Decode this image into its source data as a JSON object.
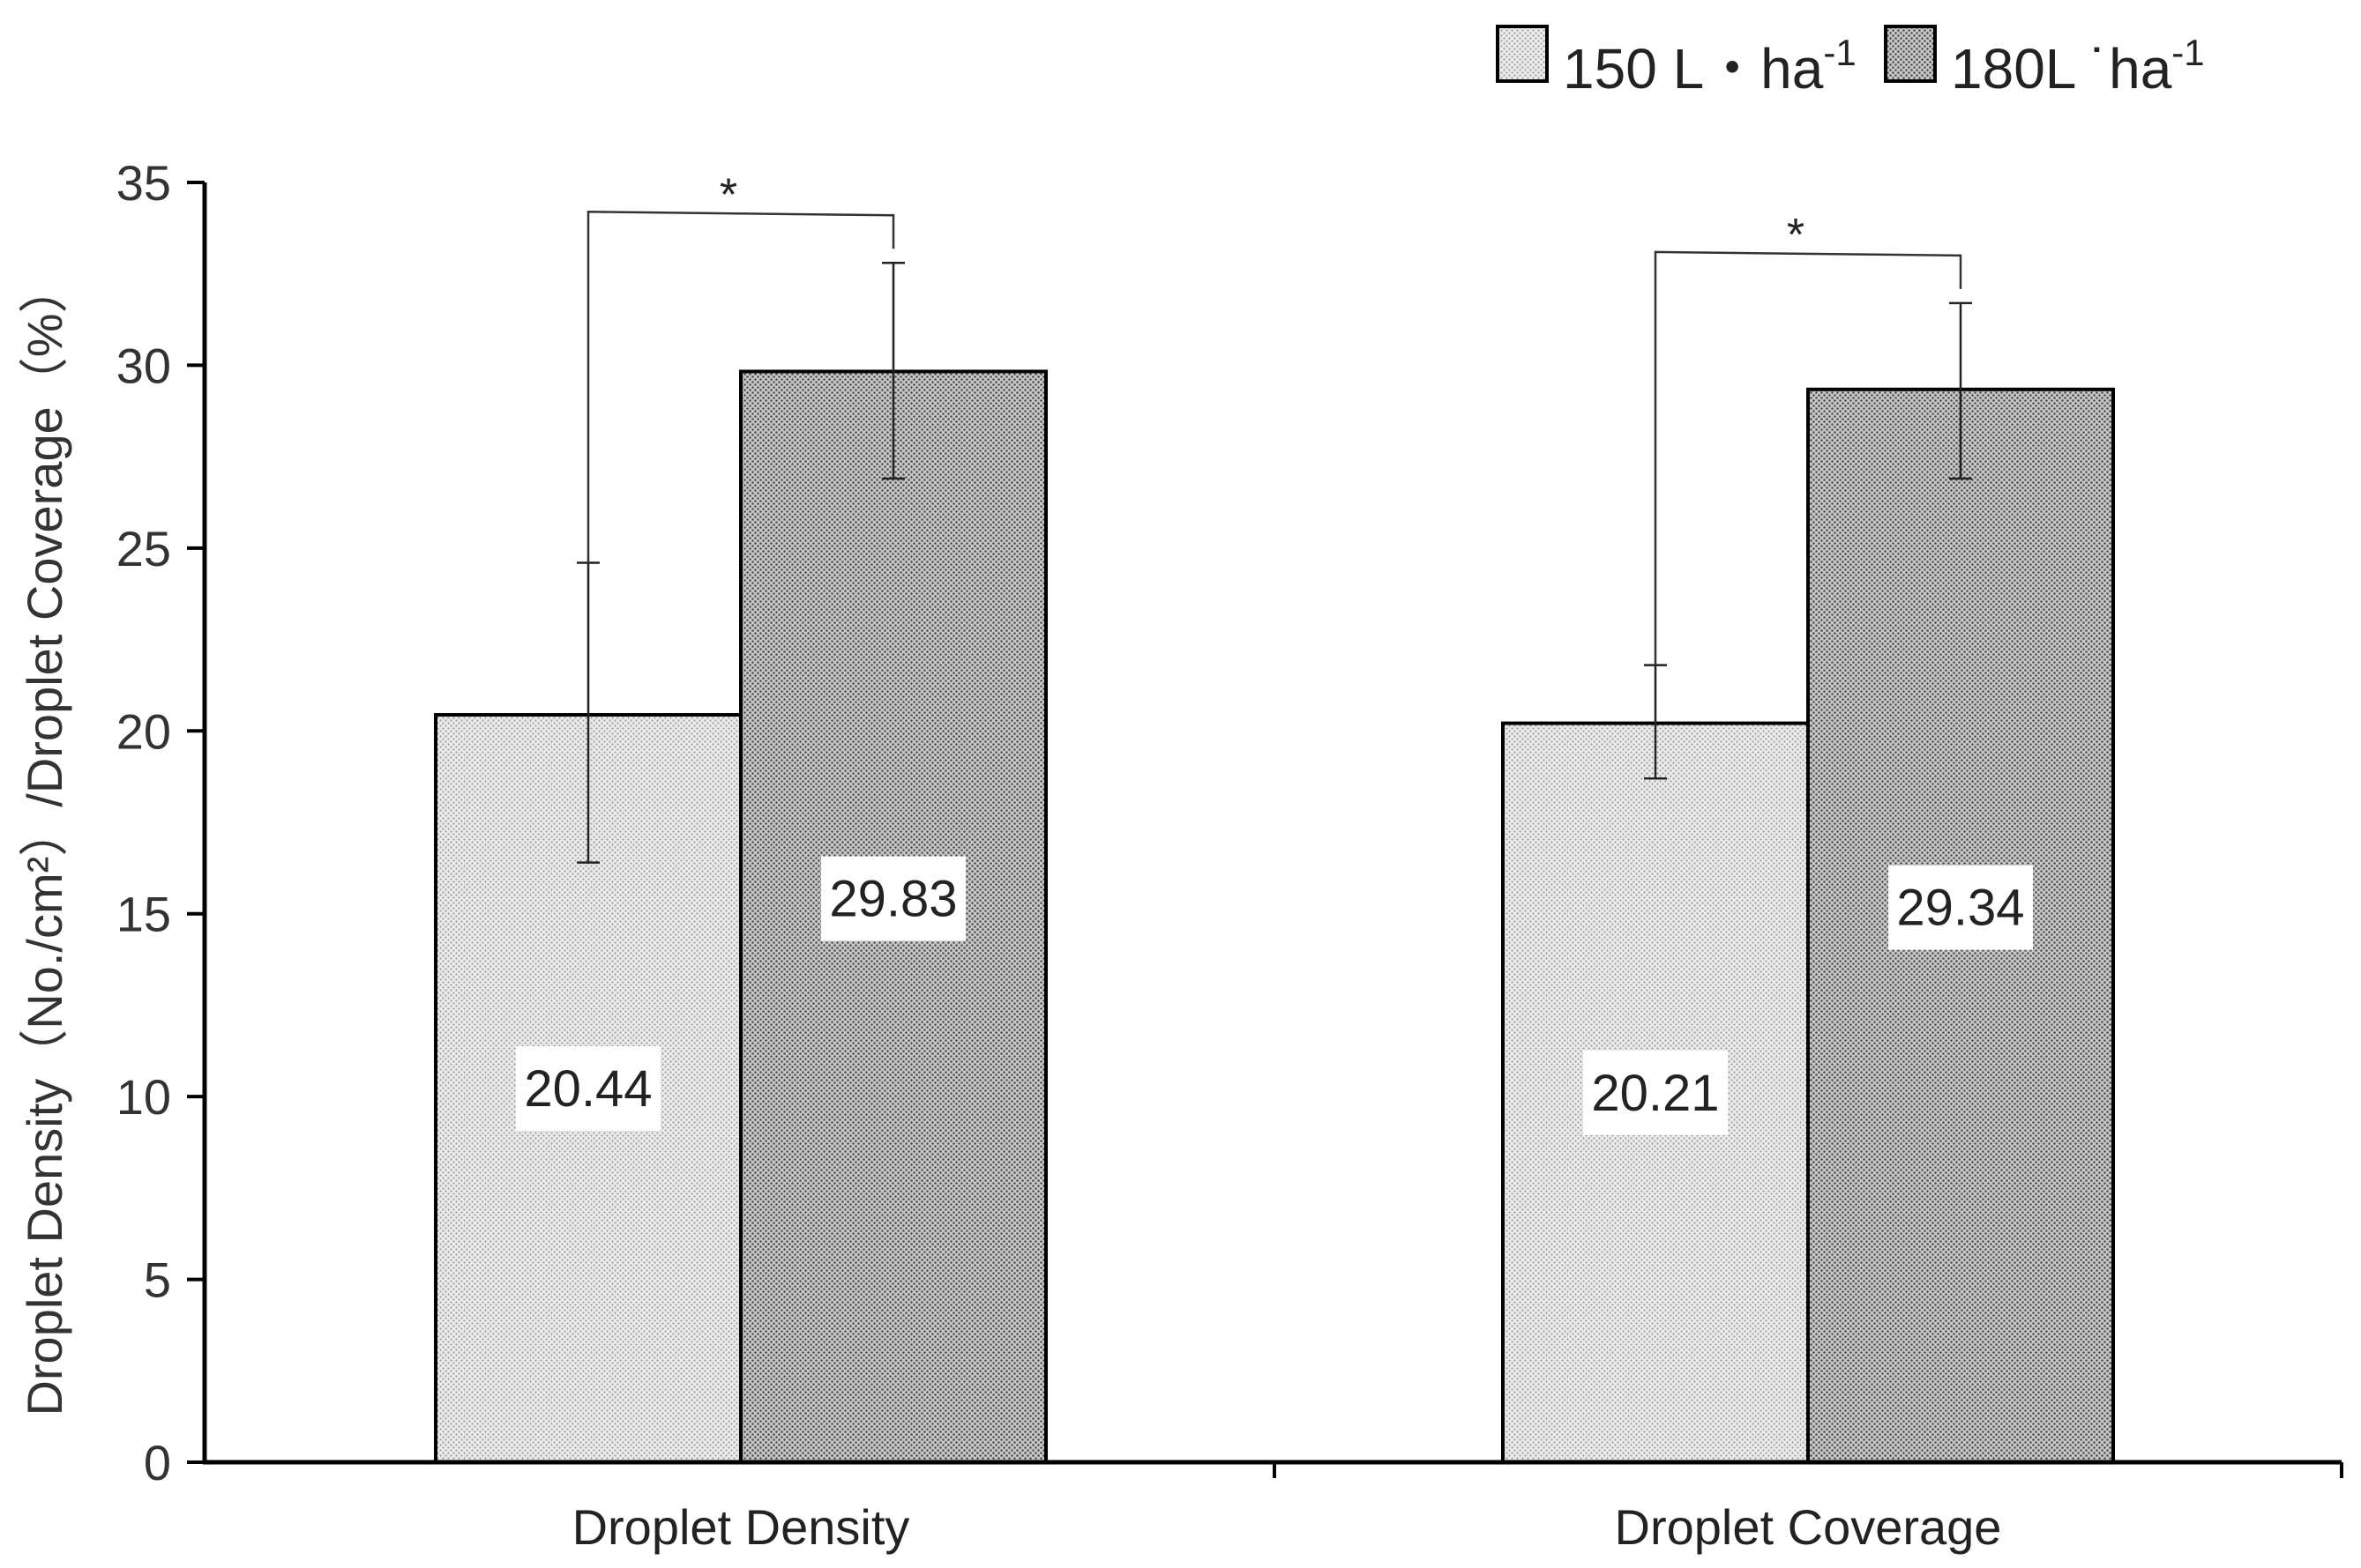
{
  "chart_data": {
    "type": "bar",
    "categories": [
      "Droplet Density",
      "Droplet Coverage"
    ],
    "series": [
      {
        "name": "150 L・ha-1",
        "legend_main": "150 L・ha",
        "legend_sup": "-1",
        "values": [
          20.44,
          20.21
        ],
        "error_low": [
          16.4,
          18.7
        ],
        "error_high": [
          24.6,
          21.8
        ],
        "value_labels": [
          "20.44",
          "20.21"
        ],
        "fill": "#e4e4e4",
        "dot": "#9a9a9a"
      },
      {
        "name": "180L˙ha-1",
        "legend_main": "180L ˙ha",
        "legend_sup": "-1",
        "values": [
          29.83,
          29.34
        ],
        "error_low": [
          26.9,
          26.9
        ],
        "error_high": [
          32.8,
          31.7
        ],
        "value_labels": [
          "29.83",
          "29.34"
        ],
        "fill": "#bdbdbd",
        "dot": "#555555"
      }
    ],
    "ylim": [
      0,
      35
    ],
    "yticks": [
      0,
      5,
      10,
      15,
      20,
      25,
      30,
      35
    ],
    "ylabel": "Droplet Density（No./cm²）/Droplet Coverage（%）",
    "xlabel": "",
    "significance": [
      "*",
      "*"
    ],
    "legend_position": "top-right",
    "grid": false
  }
}
